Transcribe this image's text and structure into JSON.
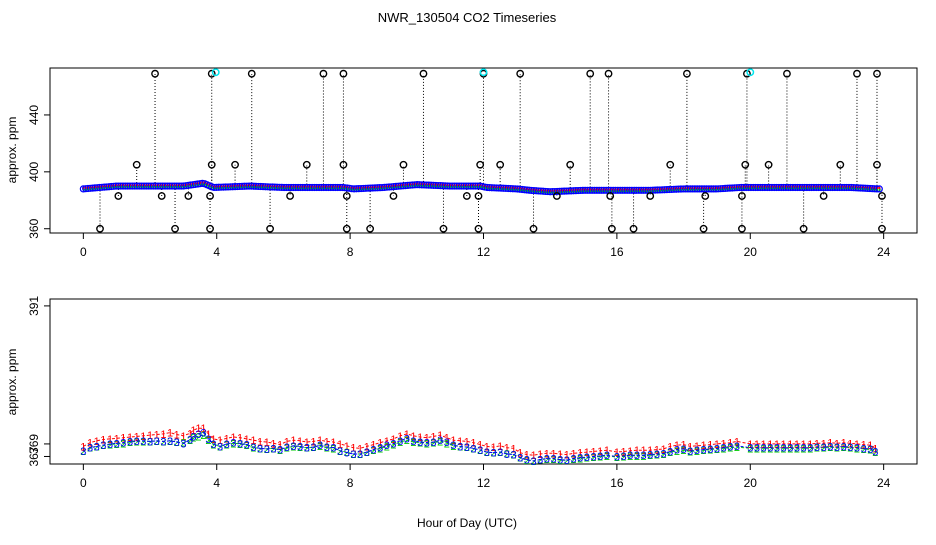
{
  "chart_data": [
    {
      "type": "scatter",
      "title": "NWR_130504  CO2 Timeseries",
      "xlabel": "",
      "ylabel": "approx. ppm",
      "xlim": [
        -1,
        25
      ],
      "ylim": [
        357,
        473
      ],
      "xticks": [
        0,
        4,
        8,
        12,
        16,
        20,
        24
      ],
      "yticks": [
        360,
        400,
        440
      ],
      "xtick_labels": [
        "0",
        "4",
        "8",
        "12",
        "16",
        "20",
        "24"
      ],
      "ytick_labels": [
        "360",
        "400",
        "440"
      ],
      "baseline": {
        "description": "dense colored baseline ~387-391 ppm (series 1 red, 2 green, 3 blue)",
        "x": [
          0.0,
          1.0,
          2.0,
          3.0,
          3.6,
          3.9,
          5.0,
          6.0,
          7.0,
          7.8,
          8.1,
          9.0,
          10.0,
          11.0,
          11.9,
          12.1,
          13.0,
          13.4,
          14.0,
          15.0,
          15.8,
          16.1,
          17.0,
          18.0,
          19.0,
          19.7,
          19.9,
          21.0,
          22.0,
          23.0,
          23.8
        ],
        "y": [
          388,
          390,
          390,
          390,
          392,
          389,
          390,
          389,
          389,
          389,
          388,
          389,
          391,
          390,
          390,
          389,
          388,
          387,
          386,
          387,
          387,
          387,
          387,
          388,
          388,
          389,
          389,
          389,
          389,
          389,
          388
        ]
      },
      "spikes_high": {
        "x": [
          2.15,
          3.85,
          5.05,
          7.2,
          7.8,
          10.2,
          12.0,
          13.1,
          15.2,
          15.75,
          18.1,
          19.9,
          21.1,
          23.2,
          23.8
        ],
        "y": [
          469,
          469,
          469,
          469,
          469,
          469,
          469,
          469,
          469,
          469,
          469,
          469,
          469,
          469,
          469
        ]
      },
      "spikes_mid": {
        "x": [
          1.6,
          3.85,
          4.55,
          6.7,
          7.8,
          9.6,
          11.9,
          12.5,
          14.6,
          17.6,
          19.85,
          20.55,
          22.7,
          23.8
        ],
        "y": [
          405,
          405,
          405,
          405,
          405,
          405,
          405,
          405,
          405,
          405,
          405,
          405,
          405,
          405
        ]
      },
      "spikes_low": {
        "x": [
          0.5,
          2.75,
          3.8,
          5.6,
          7.9,
          8.6,
          10.8,
          11.85,
          13.5,
          15.85,
          16.5,
          18.6,
          19.75,
          21.6,
          23.95
        ],
        "y": [
          360,
          360,
          360,
          360,
          360,
          360,
          360,
          360,
          360,
          360,
          360,
          360,
          360,
          360,
          360
        ]
      },
      "dips": {
        "x": [
          1.05,
          2.35,
          3.15,
          3.8,
          6.2,
          7.9,
          9.3,
          11.5,
          11.85,
          14.2,
          15.8,
          17.0,
          18.65,
          19.75,
          22.2,
          23.95
        ],
        "y": [
          383,
          383,
          383,
          383,
          383,
          383,
          383,
          383,
          383,
          383,
          383,
          383,
          383,
          383,
          383,
          383
        ]
      },
      "cyan_markers": {
        "x": [
          3.97,
          12.0,
          20.0
        ],
        "y": [
          470,
          470,
          470
        ]
      }
    },
    {
      "type": "scatter",
      "title": "",
      "xlabel": "Hour of Day (UTC)",
      "ylabel": "approx. ppm",
      "xlim": [
        -1,
        25
      ],
      "ylim": [
        365.8,
        392.1
      ],
      "xticks": [
        0,
        4,
        8,
        12,
        16,
        20,
        24
      ],
      "yticks": [
        367,
        369,
        391
      ],
      "xtick_labels": [
        "0",
        "4",
        "8",
        "12",
        "16",
        "20",
        "24"
      ],
      "ytick_labels": [
        "367",
        "369",
        "391"
      ],
      "marker_labels": [
        "1",
        "2",
        "3"
      ],
      "series": [
        {
          "name": "1",
          "color": "#ff0000",
          "x": [
            0.0,
            0.2,
            0.4,
            0.6,
            0.8,
            1.0,
            1.2,
            1.4,
            1.6,
            1.8,
            2.0,
            2.2,
            2.4,
            2.6,
            2.8,
            3.0,
            3.2,
            3.3,
            3.45,
            3.6,
            3.75,
            3.9,
            4.1,
            4.3,
            4.5,
            4.7,
            4.9,
            5.1,
            5.3,
            5.5,
            5.7,
            5.9,
            6.1,
            6.3,
            6.5,
            6.7,
            6.9,
            7.1,
            7.3,
            7.5,
            7.7,
            7.9,
            8.1,
            8.3,
            8.5,
            8.7,
            8.9,
            9.1,
            9.3,
            9.5,
            9.7,
            9.9,
            10.1,
            10.3,
            10.5,
            10.7,
            10.9,
            11.1,
            11.3,
            11.5,
            11.7,
            11.9,
            12.1,
            12.3,
            12.5,
            12.7,
            12.9,
            13.1,
            13.3,
            13.5,
            13.7,
            13.9,
            14.1,
            14.3,
            14.5,
            14.7,
            14.9,
            15.1,
            15.3,
            15.5,
            15.7,
            16.0,
            16.2,
            16.4,
            16.6,
            16.8,
            17.0,
            17.2,
            17.4,
            17.6,
            17.8,
            18.0,
            18.2,
            18.4,
            18.6,
            18.8,
            19.0,
            19.2,
            19.4,
            19.6,
            20.0,
            20.2,
            20.4,
            20.6,
            20.8,
            21.0,
            21.2,
            21.4,
            21.6,
            21.8,
            22.0,
            22.2,
            22.4,
            22.6,
            22.8,
            23.0,
            23.2,
            23.4,
            23.6,
            23.75
          ],
          "y": [
            368.6,
            369.2,
            369.5,
            369.7,
            369.8,
            369.9,
            370.0,
            370.1,
            370.2,
            370.3,
            370.4,
            370.5,
            370.6,
            370.8,
            370.5,
            370.3,
            370.7,
            371.2,
            371.5,
            371.5,
            370.6,
            369.8,
            369.6,
            369.9,
            370.1,
            370.0,
            369.8,
            369.6,
            369.4,
            369.3,
            369.1,
            368.9,
            369.4,
            369.6,
            369.5,
            369.3,
            369.4,
            369.6,
            369.4,
            369.3,
            369.0,
            368.7,
            368.4,
            368.3,
            368.6,
            368.9,
            369.2,
            369.5,
            369.8,
            370.3,
            370.6,
            370.3,
            370.1,
            370.0,
            370.2,
            370.4,
            370.0,
            369.6,
            369.5,
            369.4,
            369.2,
            368.9,
            368.6,
            368.5,
            368.7,
            368.4,
            368.3,
            367.6,
            367.3,
            367.2,
            367.4,
            367.5,
            367.5,
            367.4,
            367.3,
            367.5,
            367.6,
            367.7,
            367.8,
            367.9,
            368.0,
            367.7,
            367.8,
            367.9,
            368.0,
            368.0,
            368.0,
            368.1,
            368.2,
            368.6,
            368.8,
            368.9,
            368.6,
            368.7,
            368.8,
            368.9,
            369.0,
            369.1,
            369.2,
            369.4,
            369.0,
            369.0,
            369.0,
            369.0,
            369.0,
            369.0,
            369.0,
            369.0,
            369.0,
            369.0,
            369.1,
            369.1,
            369.2,
            369.1,
            369.2,
            369.1,
            369.0,
            368.9,
            368.8,
            368.3
          ]
        },
        {
          "name": "2",
          "color": "#00cd00",
          "x": [
            0.0,
            0.2,
            0.4,
            0.6,
            0.8,
            1.0,
            1.2,
            1.4,
            1.6,
            1.8,
            2.0,
            2.2,
            2.4,
            2.6,
            2.8,
            3.0,
            3.2,
            3.3,
            3.45,
            3.6,
            3.75,
            3.9,
            4.1,
            4.3,
            4.5,
            4.7,
            4.9,
            5.1,
            5.3,
            5.5,
            5.7,
            5.9,
            6.1,
            6.3,
            6.5,
            6.7,
            6.9,
            7.1,
            7.3,
            7.5,
            7.7,
            7.9,
            8.1,
            8.3,
            8.5,
            8.7,
            8.9,
            9.1,
            9.3,
            9.5,
            9.7,
            9.9,
            10.1,
            10.3,
            10.5,
            10.7,
            10.9,
            11.1,
            11.3,
            11.5,
            11.7,
            11.9,
            12.1,
            12.3,
            12.5,
            12.7,
            12.9,
            13.1,
            13.3,
            13.5,
            13.7,
            13.9,
            14.1,
            14.3,
            14.5,
            14.7,
            14.9,
            15.1,
            15.3,
            15.5,
            15.7,
            16.0,
            16.2,
            16.4,
            16.6,
            16.8,
            17.0,
            17.2,
            17.4,
            17.6,
            17.8,
            18.0,
            18.2,
            18.4,
            18.6,
            18.8,
            19.0,
            19.2,
            19.4,
            19.6,
            20.0,
            20.2,
            20.4,
            20.6,
            20.8,
            21.0,
            21.2,
            21.4,
            21.6,
            21.8,
            22.0,
            22.2,
            22.4,
            22.6,
            22.8,
            23.0,
            23.2,
            23.4,
            23.6,
            23.75
          ],
          "y": [
            367.9,
            368.4,
            368.6,
            368.8,
            368.9,
            369.0,
            369.1,
            369.3,
            369.4,
            369.4,
            369.4,
            369.5,
            369.4,
            369.5,
            369.3,
            369.2,
            369.6,
            370.0,
            370.2,
            370.4,
            369.6,
            368.9,
            368.6,
            368.9,
            369.1,
            369.0,
            368.8,
            368.4,
            368.3,
            368.2,
            368.3,
            368.0,
            368.4,
            368.6,
            368.5,
            368.4,
            368.5,
            368.7,
            368.4,
            368.3,
            367.9,
            367.7,
            367.4,
            367.4,
            367.7,
            368.0,
            368.3,
            368.6,
            368.9,
            369.3,
            369.6,
            369.3,
            369.2,
            369.1,
            369.2,
            369.4,
            369.1,
            368.7,
            368.6,
            368.5,
            368.3,
            368.0,
            367.7,
            367.6,
            367.7,
            367.5,
            367.3,
            366.8,
            366.4,
            366.3,
            366.5,
            366.6,
            366.6,
            366.4,
            366.4,
            366.6,
            366.7,
            366.8,
            366.9,
            367.0,
            367.1,
            366.9,
            367.0,
            367.1,
            367.1,
            367.1,
            367.2,
            367.3,
            367.4,
            367.7,
            367.9,
            368.0,
            367.8,
            367.9,
            368.0,
            368.1,
            368.2,
            368.3,
            368.4,
            368.5,
            368.3,
            368.3,
            368.3,
            368.3,
            368.3,
            368.3,
            368.3,
            368.3,
            368.3,
            368.3,
            368.4,
            368.4,
            368.5,
            368.4,
            368.5,
            368.4,
            368.3,
            368.2,
            368.1,
            367.7
          ]
        },
        {
          "name": "3",
          "color": "#0000ff",
          "x": [
            0.0,
            0.2,
            0.4,
            0.6,
            0.8,
            1.0,
            1.2,
            1.4,
            1.6,
            1.8,
            2.0,
            2.2,
            2.4,
            2.6,
            2.8,
            3.0,
            3.2,
            3.3,
            3.45,
            3.6,
            3.75,
            3.9,
            4.1,
            4.3,
            4.5,
            4.7,
            4.9,
            5.1,
            5.3,
            5.5,
            5.7,
            5.9,
            6.1,
            6.3,
            6.5,
            6.7,
            6.9,
            7.1,
            7.3,
            7.5,
            7.7,
            7.9,
            8.1,
            8.3,
            8.5,
            8.7,
            8.9,
            9.1,
            9.3,
            9.5,
            9.7,
            9.9,
            10.1,
            10.3,
            10.5,
            10.7,
            10.9,
            11.1,
            11.3,
            11.5,
            11.7,
            11.9,
            12.1,
            12.3,
            12.5,
            12.7,
            12.9,
            13.1,
            13.3,
            13.5,
            13.7,
            13.9,
            14.1,
            14.3,
            14.5,
            14.7,
            14.9,
            15.1,
            15.3,
            15.5,
            15.7,
            16.0,
            16.2,
            16.4,
            16.6,
            16.8,
            17.0,
            17.2,
            17.4,
            17.6,
            17.8,
            18.0,
            18.2,
            18.4,
            18.6,
            18.8,
            19.0,
            19.2,
            19.4,
            19.6,
            20.0,
            20.2,
            20.4,
            20.6,
            20.8,
            21.0,
            21.2,
            21.4,
            21.6,
            21.8,
            22.0,
            22.2,
            22.4,
            22.6,
            22.8,
            23.0,
            23.2,
            23.4,
            23.6,
            23.75
          ],
          "y": [
            367.9,
            368.4,
            368.6,
            368.8,
            369.0,
            369.1,
            369.2,
            369.4,
            369.5,
            369.5,
            369.4,
            369.5,
            369.4,
            369.5,
            369.3,
            369.1,
            369.7,
            370.2,
            370.6,
            370.8,
            369.8,
            369.0,
            368.6,
            369.0,
            369.2,
            369.1,
            368.9,
            368.5,
            368.3,
            368.2,
            368.3,
            368.1,
            368.5,
            368.7,
            368.6,
            368.4,
            368.5,
            368.8,
            368.5,
            368.4,
            367.9,
            367.6,
            367.4,
            367.4,
            367.7,
            368.1,
            368.4,
            368.8,
            369.1,
            369.5,
            369.9,
            369.5,
            369.3,
            369.2,
            369.3,
            369.6,
            369.3,
            368.8,
            368.6,
            368.5,
            368.3,
            368.0,
            367.7,
            367.6,
            367.7,
            367.4,
            367.3,
            366.8,
            366.5,
            366.3,
            366.5,
            366.7,
            366.7,
            366.5,
            366.4,
            366.7,
            366.8,
            366.9,
            367.0,
            367.1,
            367.2,
            367.0,
            367.1,
            367.2,
            367.2,
            367.2,
            367.3,
            367.4,
            367.5,
            367.8,
            368.1,
            368.2,
            367.9,
            368.0,
            368.1,
            368.2,
            368.3,
            368.4,
            368.6,
            368.7,
            368.4,
            368.4,
            368.4,
            368.4,
            368.4,
            368.4,
            368.4,
            368.4,
            368.4,
            368.4,
            368.5,
            368.5,
            368.6,
            368.5,
            368.6,
            368.5,
            368.4,
            368.3,
            368.2,
            367.8
          ]
        }
      ]
    }
  ]
}
